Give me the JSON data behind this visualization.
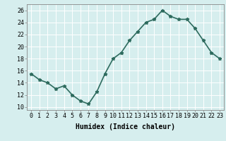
{
  "x": [
    0,
    1,
    2,
    3,
    4,
    5,
    6,
    7,
    8,
    9,
    10,
    11,
    12,
    13,
    14,
    15,
    16,
    17,
    18,
    19,
    20,
    21,
    22,
    23
  ],
  "y": [
    15.5,
    14.5,
    14.0,
    13.0,
    13.5,
    12.0,
    11.0,
    10.5,
    12.5,
    15.5,
    18.0,
    19.0,
    21.0,
    22.5,
    24.0,
    24.5,
    26.0,
    25.0,
    24.5,
    24.5,
    23.0,
    21.0,
    19.0,
    18.0
  ],
  "line_color": "#2e6b5e",
  "marker": "*",
  "marker_size": 3.5,
  "bg_color": "#d6eeee",
  "grid_color": "#ffffff",
  "xlabel": "Humidex (Indice chaleur)",
  "xlim": [
    -0.5,
    23.5
  ],
  "ylim": [
    9.5,
    27.0
  ],
  "yticks": [
    10,
    12,
    14,
    16,
    18,
    20,
    22,
    24,
    26
  ],
  "xticks": [
    0,
    1,
    2,
    3,
    4,
    5,
    6,
    7,
    8,
    9,
    10,
    11,
    12,
    13,
    14,
    15,
    16,
    17,
    18,
    19,
    20,
    21,
    22,
    23
  ],
  "xlabel_fontsize": 7,
  "tick_fontsize": 6,
  "linewidth": 1.2
}
